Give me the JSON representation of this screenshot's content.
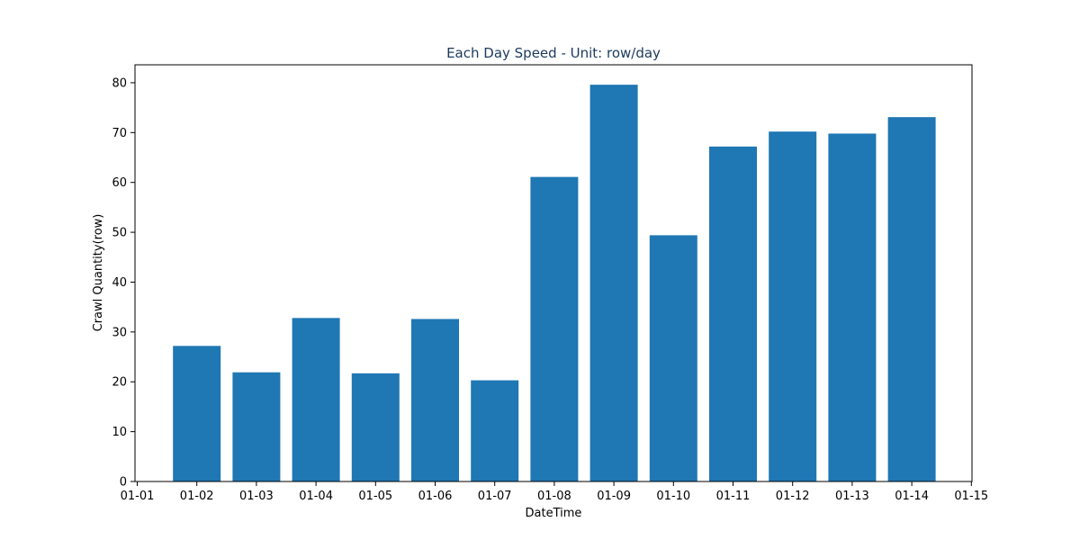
{
  "chart_data": {
    "type": "bar",
    "title": "Each Day Speed - Unit: row/day",
    "xlabel": "DateTime",
    "ylabel": "Crawl Quantity(row)",
    "categories": [
      "01-02",
      "01-03",
      "01-04",
      "01-05",
      "01-06",
      "01-07",
      "01-08",
      "01-09",
      "01-10",
      "01-11",
      "01-12",
      "01-13",
      "01-14"
    ],
    "values": [
      27.2,
      21.9,
      32.8,
      21.7,
      32.6,
      20.3,
      61.1,
      79.6,
      49.4,
      67.2,
      70.2,
      69.8,
      73.1
    ],
    "x_ticks": [
      "01-01",
      "01-02",
      "01-03",
      "01-04",
      "01-05",
      "01-06",
      "01-07",
      "01-08",
      "01-09",
      "01-10",
      "01-11",
      "01-12",
      "01-13",
      "01-14",
      "01-15"
    ],
    "y_ticks": [
      0,
      10,
      20,
      30,
      40,
      50,
      60,
      70,
      80
    ],
    "ylim": [
      0,
      83.6
    ],
    "grid": false,
    "legend": "none",
    "colors": {
      "bar": "#1f77b4",
      "title": "#1a3a5c",
      "axis": "#000000"
    }
  }
}
